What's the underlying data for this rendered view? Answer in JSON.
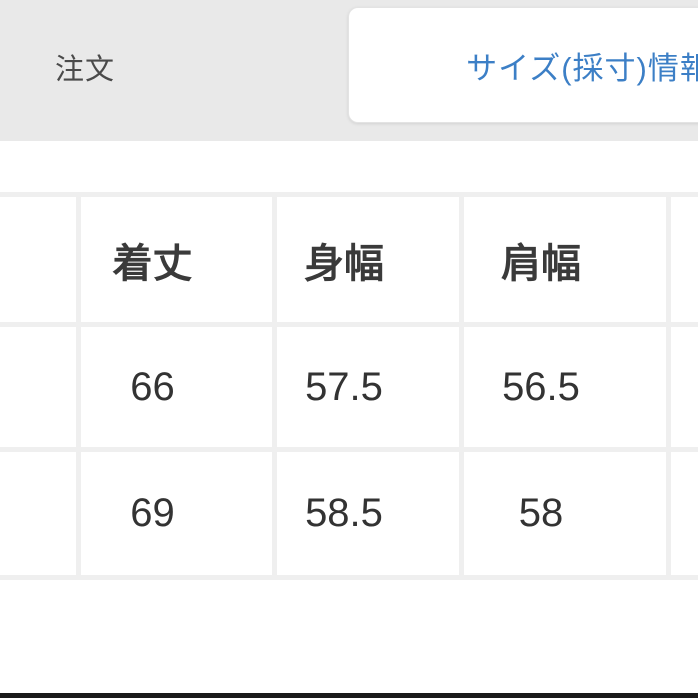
{
  "header": {
    "order_tab": "注文",
    "size_tab": "サイズ(採寸)情報"
  },
  "size_table": {
    "columns": [
      "",
      "着丈",
      "身幅",
      "肩幅",
      ""
    ],
    "rows": [
      [
        "",
        "66",
        "57.5",
        "56.5",
        ""
      ],
      [
        "",
        "69",
        "58.5",
        "58",
        ""
      ]
    ]
  },
  "colors": {
    "header_band_bg": "#e9e9e9",
    "active_tab_text": "#3c7fc6",
    "order_tab_text": "#4a4a4a",
    "table_grid_lines": "#efefef",
    "cell_text": "#333333",
    "bottom_bar": "#1a1a1a"
  }
}
